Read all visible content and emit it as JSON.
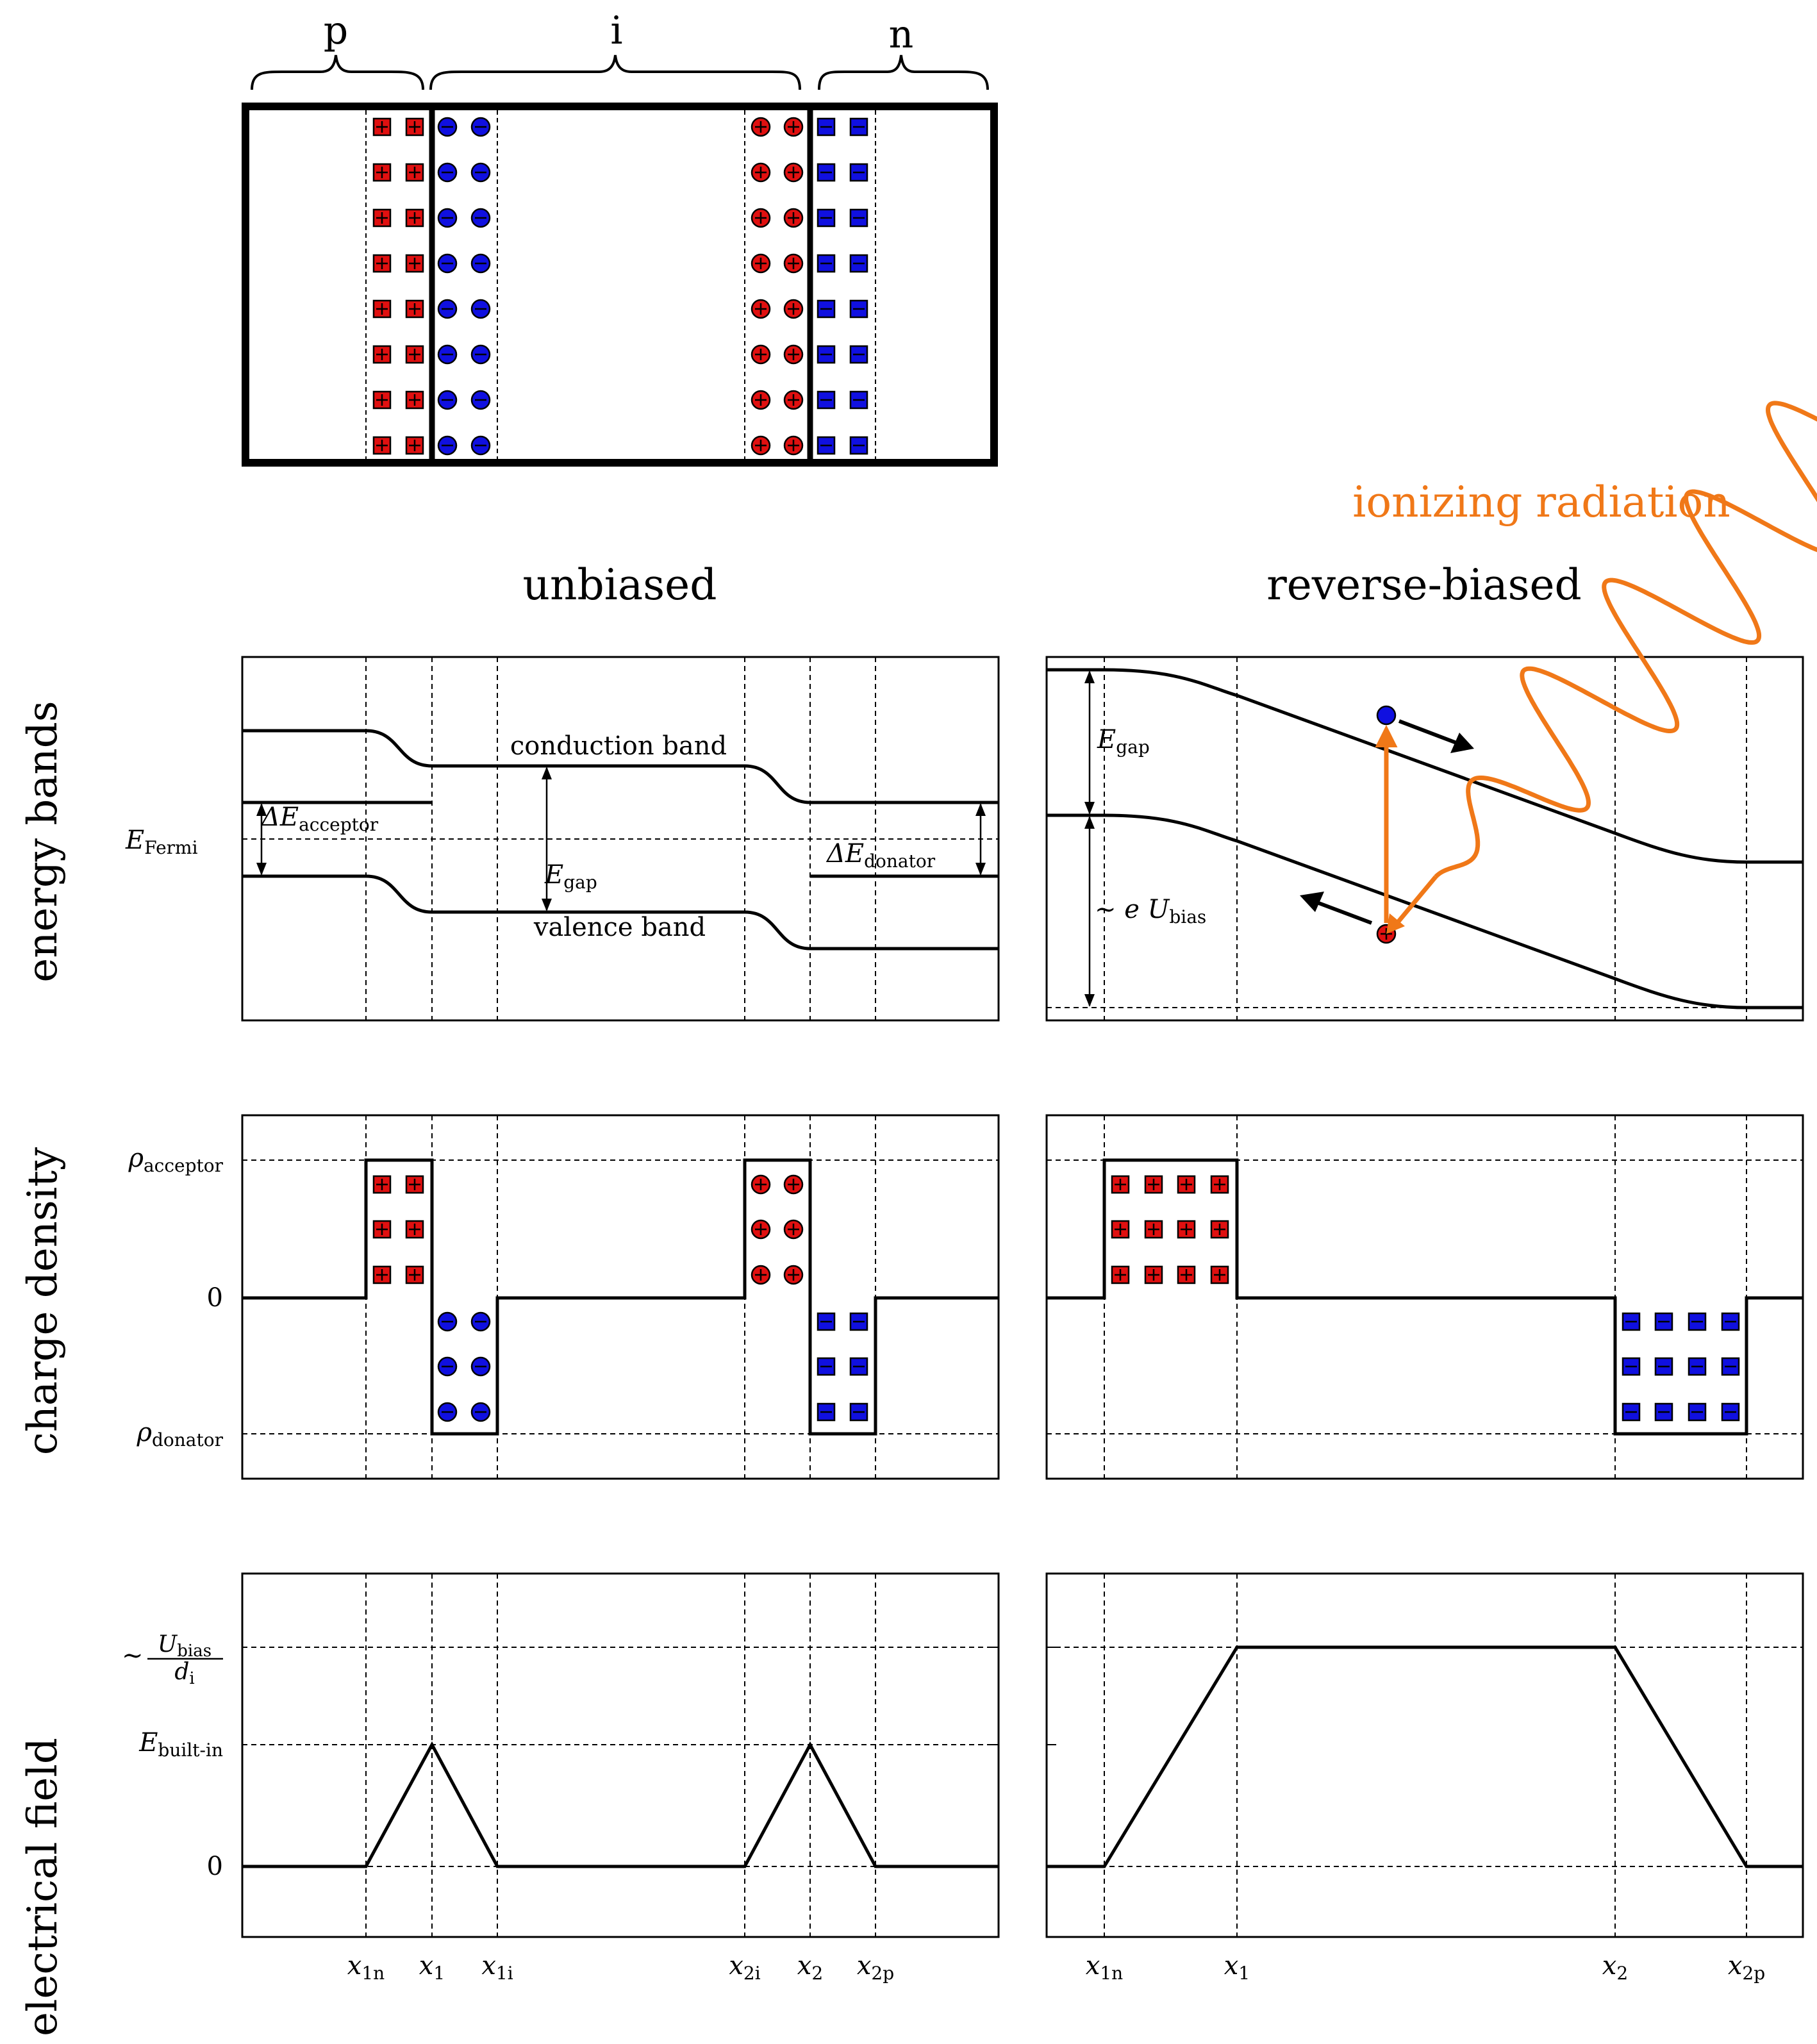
{
  "colors": {
    "acceptor": "#e01010",
    "donor": "#1010e0",
    "radiation": "#f07818",
    "line": "#000000"
  },
  "device": {
    "regions": [
      "p",
      "i",
      "n"
    ]
  },
  "columns": {
    "left_title": "unbiased",
    "right_title": "reverse-biased"
  },
  "radiation_label": "ionizing radiation",
  "rows": {
    "bands": "energy bands",
    "charge": "charge density",
    "field": "electrical field"
  },
  "bands_unbiased": {
    "conduction": "conduction band",
    "valence": "valence band",
    "fermi": "E",
    "fermi_sub": "Fermi",
    "gap": "E",
    "gap_sub": "gap",
    "dE_acc": "ΔE",
    "dE_acc_sub": "acceptor",
    "dE_don": "ΔE",
    "dE_don_sub": "donator"
  },
  "bands_biased": {
    "gap": "E",
    "gap_sub": "gap",
    "bias_prefix": "∼ e U",
    "bias_sub": "bias"
  },
  "charge_ticks": {
    "acceptor": "ρ",
    "acceptor_sub": "acceptor",
    "zero": "0",
    "donator": "ρ",
    "donator_sub": "donator"
  },
  "field_ticks": {
    "prefix": "∼",
    "num": "U",
    "num_sub": "bias",
    "den": "d",
    "den_sub": "i",
    "builtin": "E",
    "builtin_sub": "built-in",
    "zero": "0"
  },
  "x_labels_left": [
    {
      "v": "x",
      "s": "1n"
    },
    {
      "v": "x",
      "s": "1"
    },
    {
      "v": "x",
      "s": "1i"
    },
    {
      "v": "x",
      "s": "2i"
    },
    {
      "v": "x",
      "s": "2"
    },
    {
      "v": "x",
      "s": "2p"
    }
  ],
  "x_labels_right": [
    {
      "v": "x",
      "s": "1n"
    },
    {
      "v": "x",
      "s": "1"
    },
    {
      "v": "x",
      "s": "2"
    },
    {
      "v": "x",
      "s": "2p"
    }
  ]
}
